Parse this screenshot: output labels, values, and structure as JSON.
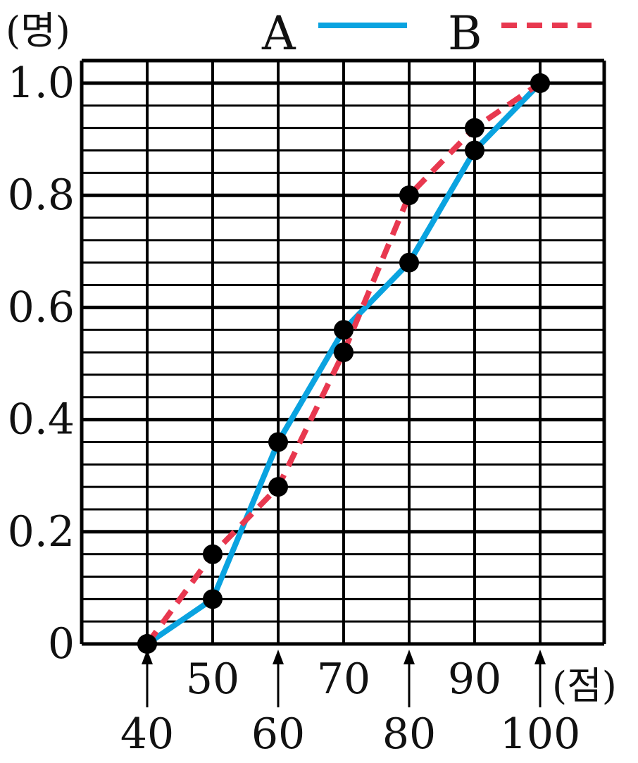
{
  "chart_data": {
    "type": "line",
    "ylabel": "(명)",
    "xlabel": "(점)",
    "xlim": [
      30,
      110
    ],
    "ylim": [
      0,
      1.0
    ],
    "x_ticks_upper": [
      "50",
      "70",
      "90"
    ],
    "x_ticks_lower": [
      "40",
      "60",
      "80",
      "100"
    ],
    "y_ticks": [
      {
        "value": 0,
        "label": "0"
      },
      {
        "value": 0.2,
        "label": "0.2"
      },
      {
        "value": 0.4,
        "label": "0.4"
      },
      {
        "value": 0.6,
        "label": "0.6"
      },
      {
        "value": 0.8,
        "label": "0.8"
      },
      {
        "value": 1.0,
        "label": "1.0"
      }
    ],
    "grid": true,
    "legend_position": "top-right",
    "series": [
      {
        "name": "A",
        "color": "#0aa3e0",
        "style": "solid",
        "x": [
          40,
          50,
          60,
          70,
          80,
          90,
          100
        ],
        "y": [
          0,
          0.08,
          0.36,
          0.56,
          0.68,
          0.88,
          1.0
        ]
      },
      {
        "name": "B",
        "color": "#e8384f",
        "style": "dashed",
        "x": [
          40,
          50,
          60,
          70,
          80,
          90,
          100
        ],
        "y": [
          0,
          0.16,
          0.28,
          0.52,
          0.8,
          0.92,
          1.0
        ]
      }
    ]
  }
}
